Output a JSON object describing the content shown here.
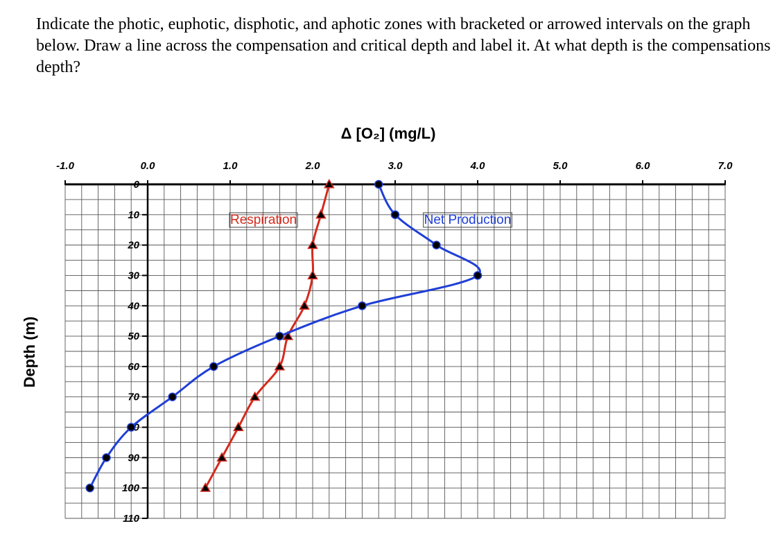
{
  "question": "Indicate the photic, euphotic, disphotic, and aphotic zones with bracketed or arrowed intervals on the graph below. Draw a line across the compensation and critical depth and label it. At what depth is the compensations depth?",
  "chart_data": {
    "type": "line",
    "title": "",
    "xlabel": "Δ [O₂] (mg/L)",
    "ylabel": "Depth (m)",
    "xlim": [
      -1.0,
      7.0
    ],
    "ylim": [
      0,
      110
    ],
    "y_inverted": true,
    "grid": true,
    "x_ticks": [
      "-1.0",
      "0.0",
      "1.0",
      "2.0",
      "3.0",
      "4.0",
      "5.0",
      "6.0",
      "7.0"
    ],
    "y_ticks": [
      "0",
      "10",
      "20",
      "30",
      "40",
      "50",
      "60",
      "70",
      "80",
      "90",
      "100",
      "110"
    ],
    "series": [
      {
        "name": "Respiration",
        "color": "#d42a1e",
        "marker": "triangle",
        "points": [
          {
            "x": 2.2,
            "y": 0
          },
          {
            "x": 2.1,
            "y": 10
          },
          {
            "x": 2.0,
            "y": 20
          },
          {
            "x": 2.0,
            "y": 30
          },
          {
            "x": 1.9,
            "y": 40
          },
          {
            "x": 1.7,
            "y": 50
          },
          {
            "x": 1.6,
            "y": 60
          },
          {
            "x": 1.3,
            "y": 70
          },
          {
            "x": 1.1,
            "y": 80
          },
          {
            "x": 0.9,
            "y": 90
          },
          {
            "x": 0.7,
            "y": 100
          }
        ]
      },
      {
        "name": "Net Production",
        "color": "#1f3fd6",
        "marker": "circle",
        "points": [
          {
            "x": 2.8,
            "y": 0
          },
          {
            "x": 3.0,
            "y": 10
          },
          {
            "x": 3.5,
            "y": 20
          },
          {
            "x": 4.0,
            "y": 30
          },
          {
            "x": 2.6,
            "y": 40
          },
          {
            "x": 1.6,
            "y": 50
          },
          {
            "x": 0.8,
            "y": 60
          },
          {
            "x": 0.3,
            "y": 70
          },
          {
            "x": -0.2,
            "y": 80
          },
          {
            "x": -0.5,
            "y": 90
          },
          {
            "x": -0.7,
            "y": 100
          }
        ]
      }
    ],
    "annotations": [
      {
        "text": "Respiration",
        "series": "Respiration"
      },
      {
        "text": "Net Production",
        "series": "Net Production"
      }
    ]
  }
}
